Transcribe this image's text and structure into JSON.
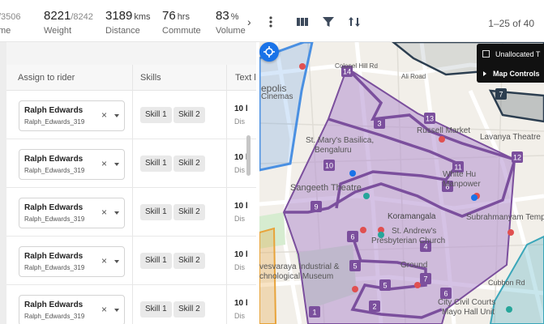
{
  "stats": [
    {
      "value": "",
      "total": "/3506",
      "label": "me"
    },
    {
      "value": "8221",
      "total": "/8242",
      "label": "Weight"
    },
    {
      "value": "3189",
      "unit": "kms",
      "label": "Distance"
    },
    {
      "value": "76",
      "unit": "hrs",
      "label": "Commute"
    },
    {
      "value": "83",
      "unit": "%",
      "label": "Volume"
    }
  ],
  "toolbar": {
    "pagination": "1–25 of 40",
    "icons": [
      "chevron-right-icon",
      "more-vert-icon",
      "columns-icon",
      "filter-icon",
      "sort-icon"
    ]
  },
  "table": {
    "columns": [
      "Assign to rider",
      "Skills",
      "Text l"
    ],
    "rows": [
      {
        "rider_name": "Ralph Edwards",
        "rider_id": "Ralph_Edwards_319",
        "skills": [
          "Skill 1",
          "Skill 2"
        ],
        "text_main": "10 l",
        "text_sub": "Dis"
      },
      {
        "rider_name": "Ralph Edwards",
        "rider_id": "Ralph_Edwards_319",
        "skills": [
          "Skill 1",
          "Skill 2"
        ],
        "text_main": "10 l",
        "text_sub": "Dis"
      },
      {
        "rider_name": "Ralph Edwards",
        "rider_id": "Ralph_Edwards_319",
        "skills": [
          "Skill 1",
          "Skill 2"
        ],
        "text_main": "10 l",
        "text_sub": "Dis"
      },
      {
        "rider_name": "Ralph Edwards",
        "rider_id": "Ralph_Edwards_319",
        "skills": [
          "Skill 1",
          "Skill 2"
        ],
        "text_main": "10 l",
        "text_sub": "Dis"
      },
      {
        "rider_name": "Ralph Edwards",
        "rider_id": "Ralph_Edwards_319",
        "skills": [
          "Skill 1",
          "Skill 2"
        ],
        "text_main": "10 l",
        "text_sub": "Dis"
      }
    ]
  },
  "map": {
    "panel": {
      "unallocated": "Unallocated T",
      "controls": "Map Controls"
    },
    "labels": [
      "Colonel Hill Rd",
      "Ali Road",
      "epolis",
      "Cinemas",
      "St. Mary's Basilica,",
      "Bengaluru",
      "Russell Market",
      "Lavanya Theatre",
      "White Hu",
      "Manpower",
      "Sangeeth Theatre",
      "Subrahmanyam Temple",
      "Koramangala",
      "St. Andrew's",
      "Presbyterian Church",
      "vesvaraya Industrial &",
      "chnological Museum",
      "Ground",
      "City Civil Courts",
      "Mayo Hall Unit",
      "Cubbon Rd"
    ],
    "markers": [
      "14",
      "13",
      "3",
      "7",
      "12",
      "10",
      "11",
      "8",
      "9",
      "6",
      "5",
      "4",
      "7",
      "1",
      "2",
      "6",
      "5"
    ],
    "colors": {
      "route": "#7b4f9d",
      "zone": "#b28fd0",
      "blue_zone": "#4a90e2",
      "teal": "#3aa6b9",
      "dark": "#2c3e50",
      "orange": "#e8a33a"
    }
  }
}
